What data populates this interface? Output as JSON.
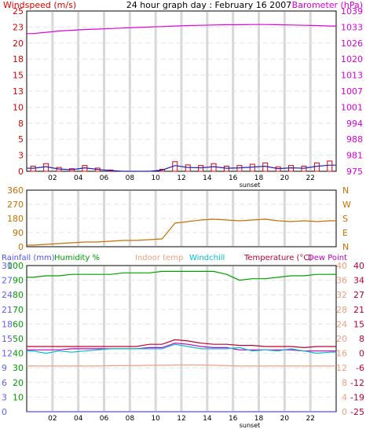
{
  "header": {
    "left_label": "Windspeed (m/s)",
    "title": "24 hour graph day : February 16 2007",
    "right_label": "Barometer (hPa)"
  },
  "legend_row": {
    "rainfall": "Rainfall (mm)",
    "humidity": "Humidity %",
    "indoor": "Indoor temp",
    "windchill": "Windchill",
    "temperature": "Temperature (°C)",
    "dewpoint": "Dew Point"
  },
  "x_ticks": [
    "02",
    "04",
    "06",
    "08",
    "10",
    "12",
    "14",
    "16",
    "18",
    "20",
    "22"
  ],
  "sunset_label": "sunset",
  "colors": {
    "wind": "#e00000",
    "gust_avg": "#2020c0",
    "barometer": "#e000e0",
    "direction": "#c87000",
    "rainfall": "#5050ff",
    "humidity": "#00a000",
    "indoor": "#f0a080",
    "windchill": "#00c0d0",
    "temperature": "#c00030",
    "dewpoint": "#c000c0",
    "grid": "#d8d8d8",
    "axis_left_top": "#e00000",
    "axis_right_top": "#e000e0"
  },
  "chart_data": [
    {
      "type": "line",
      "title": "24 hour graph day : February 16 2007",
      "x": [
        0,
        1,
        2,
        3,
        4,
        5,
        6,
        7,
        8,
        9,
        10,
        11,
        12,
        13,
        14,
        15,
        16,
        17,
        18,
        19,
        20,
        21,
        22,
        23
      ],
      "left_axis": {
        "label": "Windspeed (m/s)",
        "ticks": [
          0,
          3,
          5,
          8,
          10,
          13,
          15,
          18,
          20,
          23,
          25
        ],
        "ylim": [
          0,
          25
        ]
      },
      "right_axis": {
        "label": "Barometer (hPa)",
        "ticks": [
          975,
          981,
          988,
          994,
          1001,
          1007,
          1013,
          1020,
          1026,
          1033,
          1039
        ],
        "ylim": [
          975,
          1039
        ]
      },
      "series": [
        {
          "name": "Barometer (hPa)",
          "axis": "right",
          "values": [
            1030,
            1030.5,
            1031,
            1031.3,
            1031.6,
            1031.8,
            1032,
            1032.2,
            1032.4,
            1032.6,
            1032.8,
            1033,
            1033.2,
            1033.3,
            1033.4,
            1033.5,
            1033.5,
            1033.6,
            1033.6,
            1033.5,
            1033.4,
            1033.3,
            1033.2,
            1033
          ]
        },
        {
          "name": "Windspeed (m/s)",
          "axis": "left",
          "values": [
            0.8,
            1.2,
            0.6,
            0.4,
            0.9,
            0.5,
            0.2,
            0,
            0,
            0,
            0.3,
            1.5,
            1.0,
            0.9,
            1.2,
            0.8,
            0.9,
            1.1,
            1.3,
            0.7,
            0.9,
            0.8,
            1.3,
            1.6
          ]
        }
      ],
      "annotations": [
        "sunset"
      ]
    },
    {
      "type": "line",
      "x": [
        0,
        1,
        2,
        3,
        4,
        5,
        6,
        7,
        8,
        9,
        10,
        11,
        12,
        13,
        14,
        15,
        16,
        17,
        18,
        19,
        20,
        21,
        22,
        23
      ],
      "left_axis": {
        "ticks": [
          0,
          90,
          180,
          270,
          360
        ],
        "ylim": [
          0,
          360
        ]
      },
      "right_axis": {
        "ticks": [
          "N",
          "E",
          "S",
          "W",
          "N"
        ]
      },
      "series": [
        {
          "name": "Wind direction",
          "values": [
            10,
            15,
            20,
            25,
            30,
            30,
            35,
            40,
            40,
            45,
            50,
            150,
            160,
            170,
            175,
            170,
            165,
            170,
            175,
            165,
            160,
            165,
            160,
            165
          ]
        }
      ]
    },
    {
      "type": "line",
      "x": [
        0,
        1,
        2,
        3,
        4,
        5,
        6,
        7,
        8,
        9,
        10,
        11,
        12,
        13,
        14,
        15,
        16,
        17,
        18,
        19,
        20,
        21,
        22,
        23
      ],
      "axes": {
        "rainfall": {
          "label": "Rainfall (mm)",
          "ticks": [
            0,
            3,
            6,
            9,
            12,
            15,
            18,
            21,
            24,
            27,
            30
          ],
          "ylim": [
            0,
            30
          ]
        },
        "humidity": {
          "label": "Humidity %",
          "ticks": [
            0,
            10,
            20,
            30,
            40,
            50,
            60,
            70,
            80,
            90,
            100
          ],
          "ylim": [
            0,
            100
          ]
        },
        "indoor": {
          "label": "Indoor temp",
          "ticks": [
            0,
            4,
            8,
            12,
            16,
            20,
            24,
            28,
            32,
            36,
            40
          ],
          "ylim": [
            0,
            40
          ]
        },
        "temperature": {
          "label": "Temperature (°C)",
          "ticks": [
            -25,
            -19,
            -12,
            -6,
            0,
            8,
            15,
            21,
            27,
            34,
            40
          ],
          "ylim": [
            -25,
            40
          ]
        }
      },
      "series": [
        {
          "name": "Humidity %",
          "axis": "humidity",
          "values": [
            92,
            93,
            93,
            94,
            94,
            94,
            94,
            95,
            95,
            95,
            96,
            96,
            96,
            96,
            96,
            94,
            90,
            91,
            91,
            92,
            93,
            93,
            94,
            94
          ]
        },
        {
          "name": "Temperature (°C)",
          "axis": "temperature",
          "values": [
            4,
            4,
            4,
            4,
            4,
            4,
            4,
            4,
            4,
            5,
            5,
            7,
            6.5,
            5.5,
            5,
            5,
            4.5,
            4.5,
            4,
            4,
            4,
            3.5,
            4,
            4
          ]
        },
        {
          "name": "Dew Point",
          "axis": "temperature",
          "values": [
            2.5,
            2.5,
            2.5,
            3,
            3,
            3,
            3,
            3,
            3,
            3.5,
            3.5,
            5.5,
            5,
            4,
            3.5,
            3.5,
            2.5,
            2.5,
            2.5,
            2.5,
            2.5,
            2,
            2,
            2
          ]
        },
        {
          "name": "Windchill",
          "axis": "temperature",
          "values": [
            2,
            1,
            2,
            1.5,
            2,
            2.5,
            3,
            3,
            3,
            3,
            3,
            5,
            4,
            3,
            3,
            3,
            3.5,
            2,
            2.5,
            2,
            3,
            2,
            1,
            1.5
          ]
        },
        {
          "name": "Indoor temp",
          "axis": "indoor",
          "values": [
            12.5,
            12.5,
            12.5,
            12.5,
            12.5,
            12.5,
            12.6,
            12.6,
            12.6,
            12.7,
            12.7,
            12.8,
            12.8,
            12.8,
            12.7,
            12.6,
            12.5,
            12.5,
            12.5,
            12.5,
            12.5,
            12.5,
            12.5,
            12.5
          ]
        },
        {
          "name": "Rainfall (mm)",
          "axis": "rainfall",
          "values": [
            0,
            0,
            0,
            0,
            0,
            0,
            0,
            0,
            0,
            0,
            0,
            0,
            0,
            0,
            0,
            0,
            0,
            0,
            0,
            0,
            0,
            0,
            0,
            0
          ]
        }
      ],
      "annotations": [
        "sunset"
      ]
    }
  ]
}
